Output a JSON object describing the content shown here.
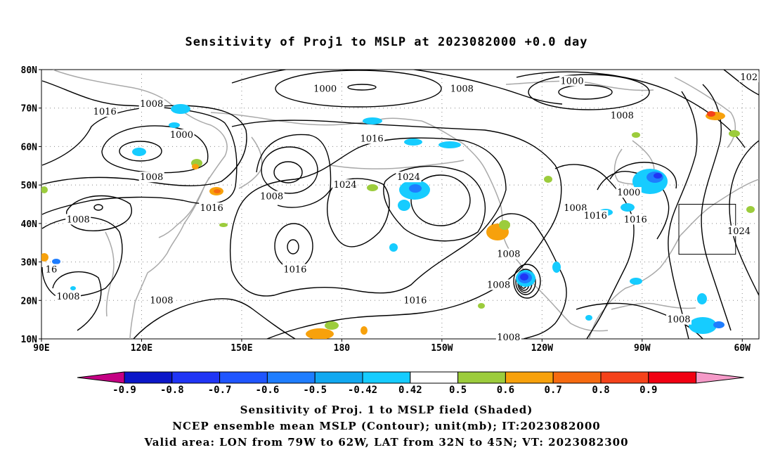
{
  "title": "Sensitivity of Proj1 to MSLP at 2023082000 +0.0 day",
  "footer": {
    "line1": "Sensitivity of Proj. 1 to MSLP field (Shaded)",
    "line2": "NCEP ensemble mean MSLP (Contour); unit(mb); IT:2023082000",
    "line3": "Valid area: LON from 79W to 62W, LAT from 32N to 45N; VT: 2023082300"
  },
  "axes": {
    "lon_range": [
      90,
      305
    ],
    "lat_range": [
      10,
      80
    ],
    "x_ticks": [
      {
        "lon": 90,
        "label": "90E"
      },
      {
        "lon": 120,
        "label": "120E"
      },
      {
        "lon": 150,
        "label": "150E"
      },
      {
        "lon": 180,
        "label": "180"
      },
      {
        "lon": 210,
        "label": "150W"
      },
      {
        "lon": 240,
        "label": "120W"
      },
      {
        "lon": 270,
        "label": "90W"
      },
      {
        "lon": 300,
        "label": "60W"
      }
    ],
    "y_ticks": [
      {
        "lat": 10,
        "label": "10N"
      },
      {
        "lat": 20,
        "label": "20N"
      },
      {
        "lat": 30,
        "label": "30N"
      },
      {
        "lat": 40,
        "label": "40N"
      },
      {
        "lat": 50,
        "label": "50N"
      },
      {
        "lat": 60,
        "label": "60N"
      },
      {
        "lat": 70,
        "label": "70N"
      },
      {
        "lat": 80,
        "label": "80N"
      }
    ]
  },
  "valid_area": {
    "lon_min": 281,
    "lon_max": 298,
    "lat_min": 32,
    "lat_max": 45
  },
  "colorbar": {
    "labels": [
      "-0.9",
      "-0.8",
      "-0.7",
      "-0.6",
      "-0.5",
      "-0.42",
      "0.42",
      "0.5",
      "0.6",
      "0.7",
      "0.8",
      "0.9"
    ],
    "colors": [
      "#c40083",
      "#0b16c8",
      "#2035f5",
      "#1f55ff",
      "#1e7dff",
      "#11a8f0",
      "#16ccff",
      "#ffffff",
      "#9ccc3c",
      "#f7a10c",
      "#f66a10",
      "#f5421a",
      "#f10012",
      "#f59ac8"
    ]
  },
  "contour_labels": [
    {
      "text": "1000",
      "lon": 175,
      "lat": 75
    },
    {
      "text": "1000",
      "lon": 249,
      "lat": 77
    },
    {
      "text": "1000",
      "lon": 132,
      "lat": 63
    },
    {
      "text": "1000",
      "lon": 266,
      "lat": 48
    },
    {
      "text": "1008",
      "lon": 216,
      "lat": 75
    },
    {
      "text": "1008",
      "lon": 123,
      "lat": 71
    },
    {
      "text": "1008",
      "lon": 264,
      "lat": 68
    },
    {
      "text": "1008",
      "lon": 123,
      "lat": 52
    },
    {
      "text": "1008",
      "lon": 159,
      "lat": 47
    },
    {
      "text": "1008",
      "lon": 101,
      "lat": 41
    },
    {
      "text": "1008",
      "lon": 250,
      "lat": 44
    },
    {
      "text": "1008",
      "lon": 230,
      "lat": 32
    },
    {
      "text": "1008",
      "lon": 227,
      "lat": 24
    },
    {
      "text": "1008",
      "lon": 98,
      "lat": 21
    },
    {
      "text": "1008",
      "lon": 126,
      "lat": 20
    },
    {
      "text": "1008",
      "lon": 230,
      "lat": 10
    },
    {
      "text": "1008",
      "lon": 281,
      "lat": 15
    },
    {
      "text": "1016",
      "lon": 109,
      "lat": 69
    },
    {
      "text": "1016",
      "lon": 189,
      "lat": 62
    },
    {
      "text": "1016",
      "lon": 141,
      "lat": 44
    },
    {
      "text": "1016",
      "lon": 256,
      "lat": 42
    },
    {
      "text": "1016",
      "lon": 268,
      "lat": 41
    },
    {
      "text": "1016",
      "lon": 166,
      "lat": 28
    },
    {
      "text": "1016",
      "lon": 202,
      "lat": 20
    },
    {
      "text": "16",
      "lon": 88,
      "lat": 28
    },
    {
      "text": "1024",
      "lon": 181,
      "lat": 50
    },
    {
      "text": "1024",
      "lon": 200,
      "lat": 52
    },
    {
      "text": "1024",
      "lon": 299,
      "lat": 38
    },
    {
      "text": "102",
      "lon": 302,
      "lat": 78
    }
  ]
}
